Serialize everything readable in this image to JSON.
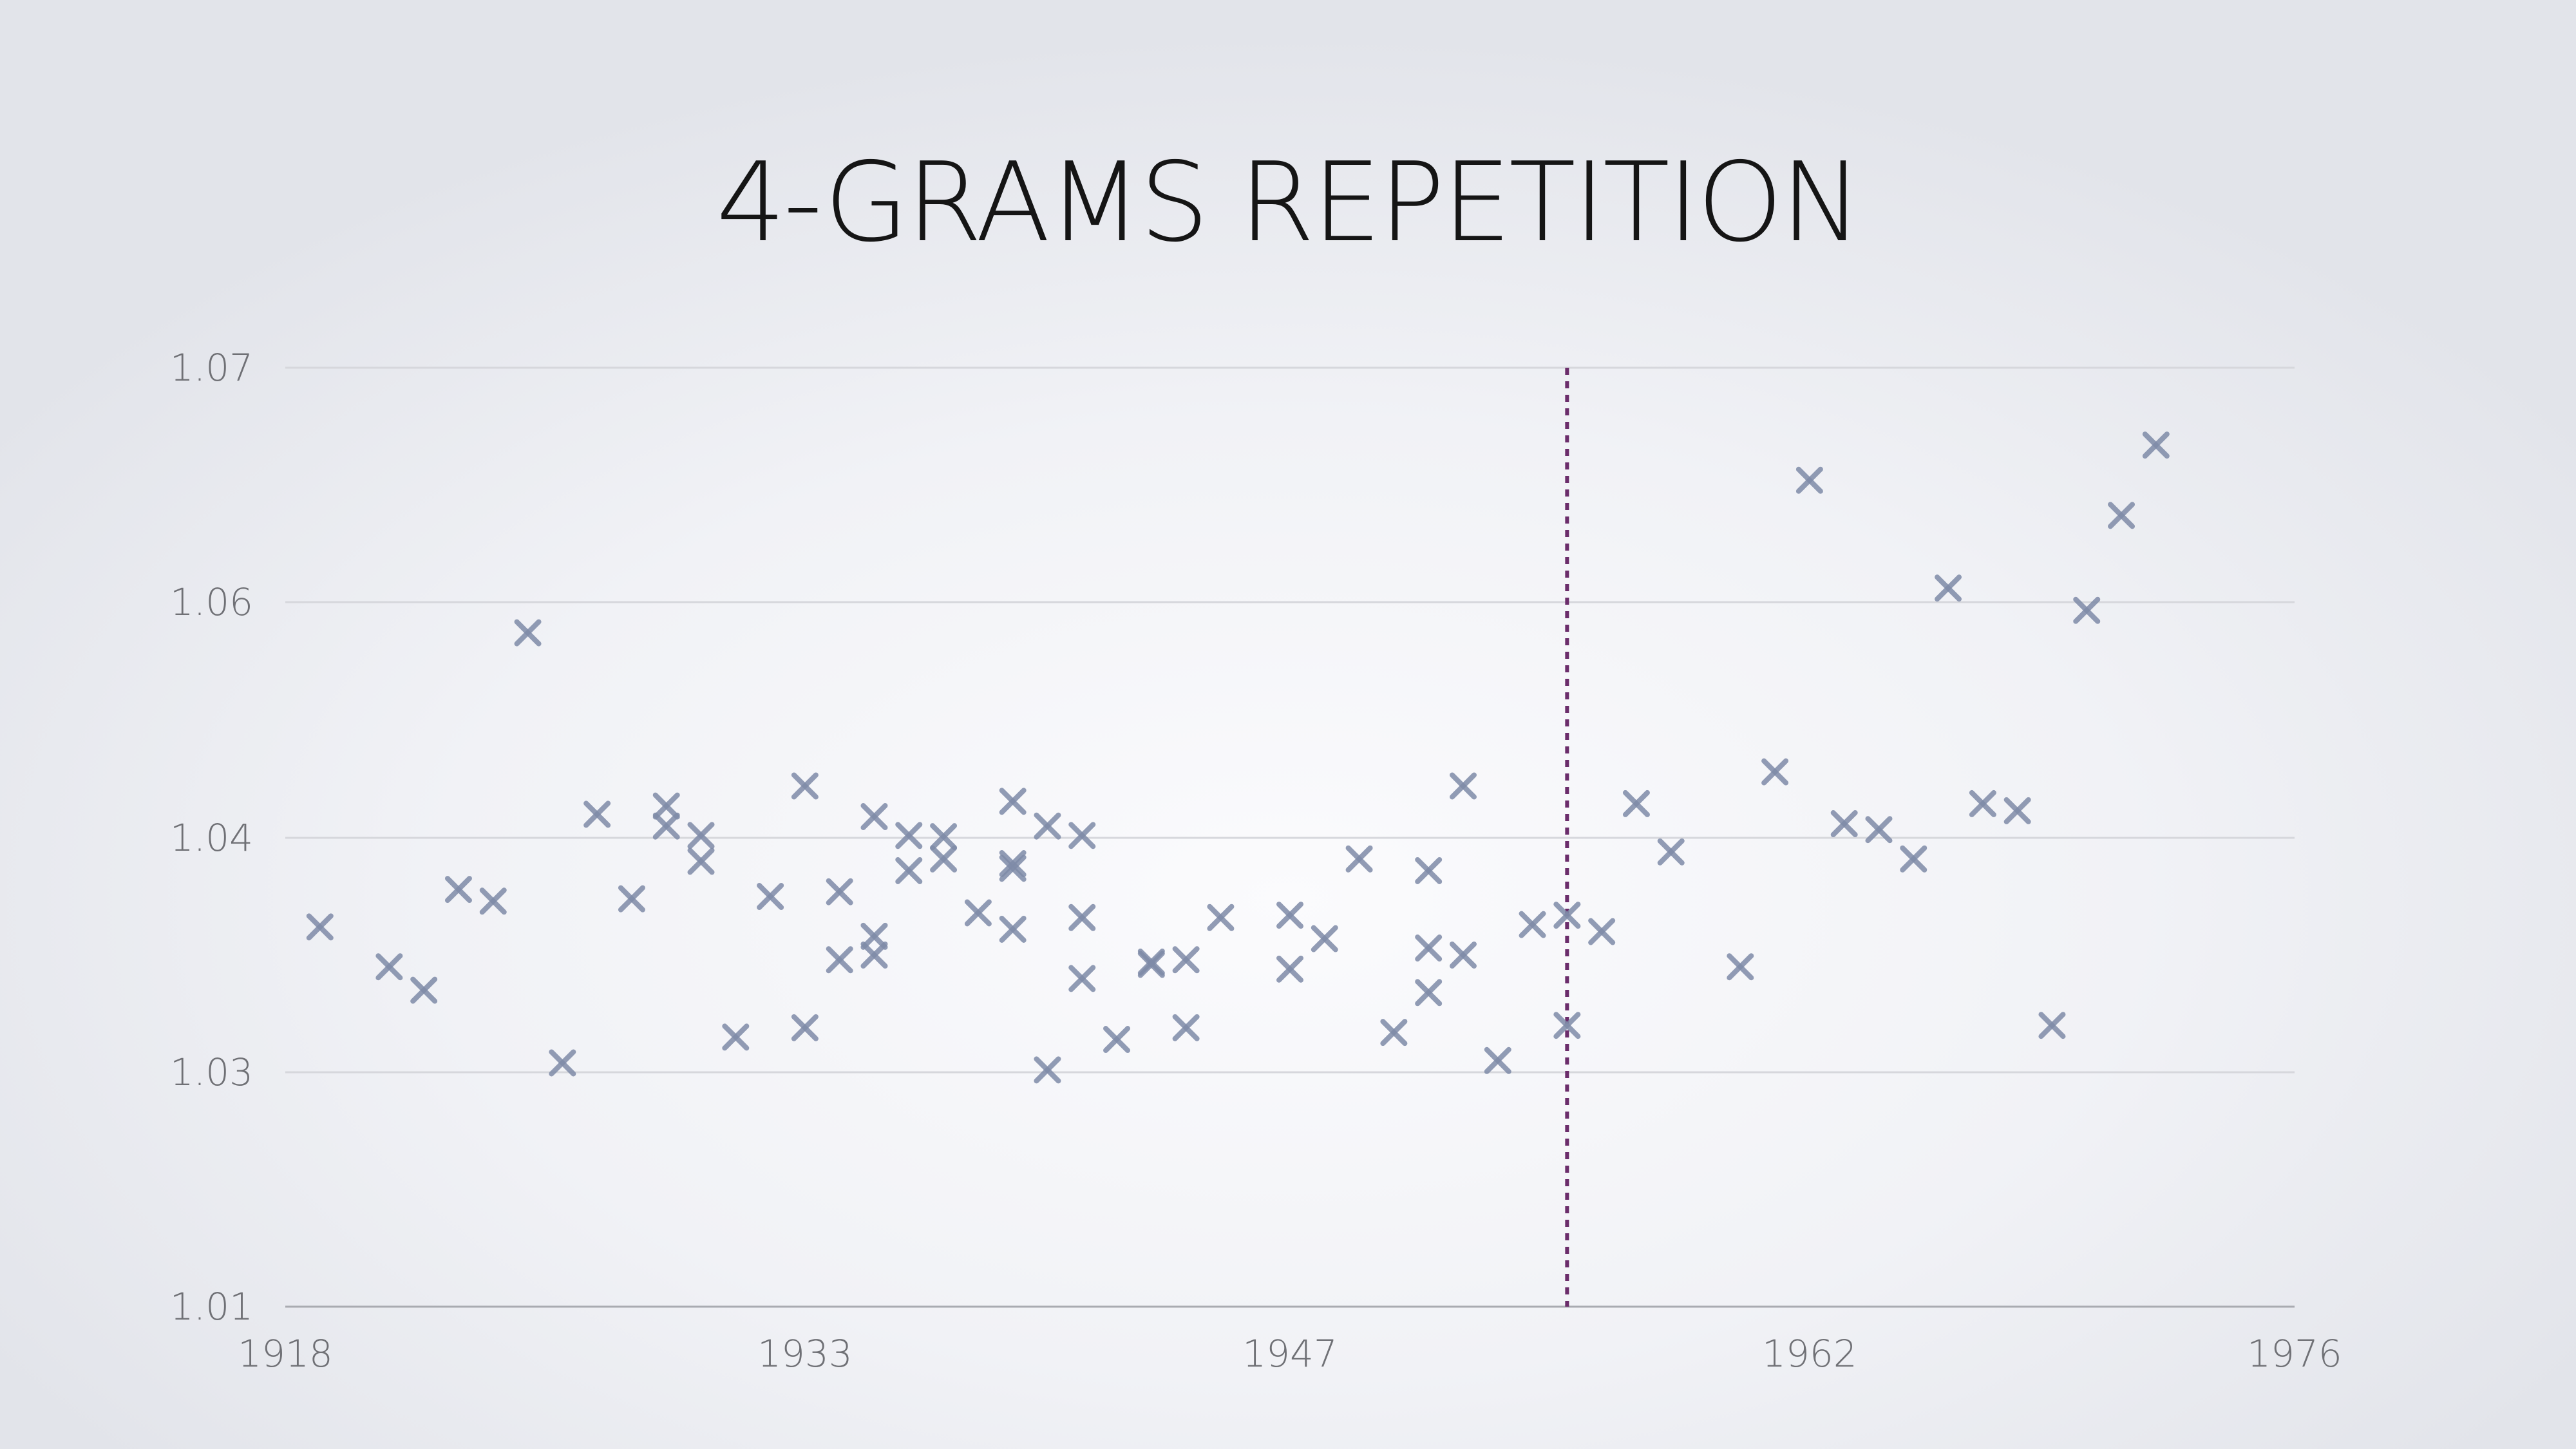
{
  "slide": {
    "title": "4-GRAMS REPETITION"
  },
  "chart_data": {
    "type": "scatter",
    "title": "4-GRAMS REPETITION",
    "xlabel": "",
    "ylabel": "",
    "xlim": [
      1918,
      1976
    ],
    "ylim": [
      1.01,
      1.07
    ],
    "x_ticks": [
      1918,
      1933,
      1947,
      1962,
      1976
    ],
    "x_tick_labels": [
      "1918",
      "1933",
      "1947",
      "1962",
      "1976"
    ],
    "y_ticks": [
      1.01,
      1.03,
      1.04,
      1.06,
      1.07
    ],
    "y_tick_labels": [
      "1.01",
      "1.03",
      "1.04",
      "1.06",
      "1.07"
    ],
    "grid": true,
    "marker": "x",
    "marker_color": "#7f8ba8",
    "vertical_line": {
      "x": 1955,
      "style": "dotted",
      "color": "#6b2d6b"
    },
    "series": [
      {
        "points": [
          [
            1919,
            1.0362
          ],
          [
            1921,
            1.0345
          ],
          [
            1922,
            1.0335
          ],
          [
            1923,
            1.0378
          ],
          [
            1924,
            1.0373
          ],
          [
            1925,
            1.0574
          ],
          [
            1926,
            1.0304
          ],
          [
            1927,
            1.042
          ],
          [
            1928,
            1.0374
          ],
          [
            1929,
            1.0427
          ],
          [
            1929,
            1.041
          ],
          [
            1930,
            1.0402
          ],
          [
            1930,
            1.039
          ],
          [
            1931,
            1.0315
          ],
          [
            1932,
            1.0375
          ],
          [
            1933,
            1.0444
          ],
          [
            1933,
            1.0319
          ],
          [
            1934,
            1.0377
          ],
          [
            1934,
            1.0348
          ],
          [
            1935,
            1.0418
          ],
          [
            1935,
            1.0358
          ],
          [
            1935,
            1.035
          ],
          [
            1936,
            1.0402
          ],
          [
            1936,
            1.0386
          ],
          [
            1937,
            1.0401
          ],
          [
            1937,
            1.0391
          ],
          [
            1938,
            1.0368
          ],
          [
            1939,
            1.0431
          ],
          [
            1939,
            1.0389
          ],
          [
            1939,
            1.0387
          ],
          [
            1939,
            1.0361
          ],
          [
            1940,
            1.041
          ],
          [
            1940,
            1.0301
          ],
          [
            1941,
            1.0402
          ],
          [
            1941,
            1.0366
          ],
          [
            1941,
            1.034
          ],
          [
            1942,
            1.0314
          ],
          [
            1943,
            1.0347
          ],
          [
            1943,
            1.0346
          ],
          [
            1944,
            1.0348
          ],
          [
            1944,
            1.0319
          ],
          [
            1945,
            1.0366
          ],
          [
            1947,
            1.0367
          ],
          [
            1947,
            1.0344
          ],
          [
            1948,
            1.0357
          ],
          [
            1949,
            1.0391
          ],
          [
            1950,
            1.0317
          ],
          [
            1951,
            1.0386
          ],
          [
            1951,
            1.0353
          ],
          [
            1951,
            1.0334
          ],
          [
            1952,
            1.0444
          ],
          [
            1952,
            1.035
          ],
          [
            1953,
            1.0305
          ],
          [
            1954,
            1.0363
          ],
          [
            1955,
            1.0367
          ],
          [
            1955,
            1.032
          ],
          [
            1956,
            1.036
          ],
          [
            1957,
            1.0429
          ],
          [
            1958,
            1.0394
          ],
          [
            1960,
            1.0345
          ],
          [
            1961,
            1.0456
          ],
          [
            1962,
            1.0652
          ],
          [
            1963,
            1.0412
          ],
          [
            1964,
            1.0407
          ],
          [
            1965,
            1.0391
          ],
          [
            1966,
            1.0606
          ],
          [
            1967,
            1.0429
          ],
          [
            1968,
            1.0423
          ],
          [
            1969,
            1.032
          ],
          [
            1970,
            1.0593
          ],
          [
            1971,
            1.0637
          ],
          [
            1972,
            1.0667
          ]
        ]
      }
    ]
  }
}
